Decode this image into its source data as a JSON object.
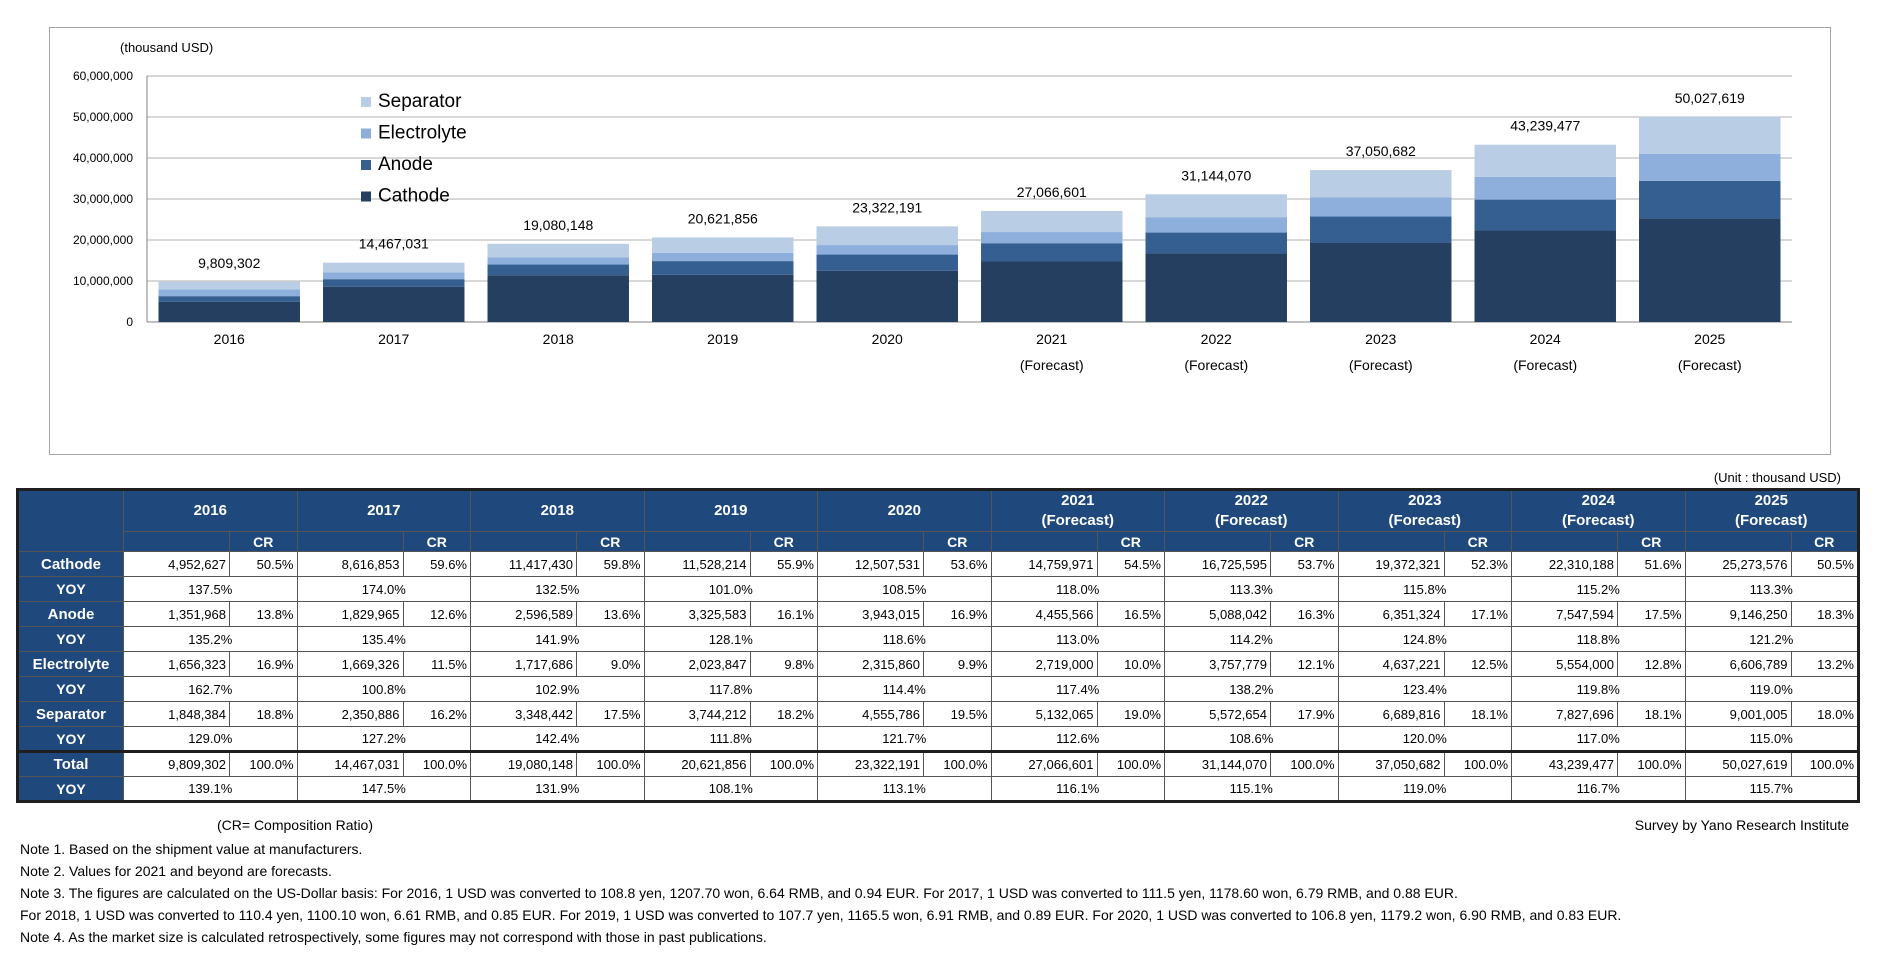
{
  "chart_data": {
    "type": "bar",
    "stacked": true,
    "y_unit_label": "(thousand USD)",
    "ylim": [
      0,
      60000000
    ],
    "yticks": [
      "0",
      "10,000,000",
      "20,000,000",
      "30,000,000",
      "40,000,000",
      "50,000,000",
      "60,000,000"
    ],
    "grid": true,
    "legend_position": "top-left",
    "categories": [
      {
        "year": "2016",
        "sub": ""
      },
      {
        "year": "2017",
        "sub": ""
      },
      {
        "year": "2018",
        "sub": ""
      },
      {
        "year": "2019",
        "sub": ""
      },
      {
        "year": "2020",
        "sub": ""
      },
      {
        "year": "2021",
        "sub": "(Forecast)"
      },
      {
        "year": "2022",
        "sub": "(Forecast)"
      },
      {
        "year": "2023",
        "sub": "(Forecast)"
      },
      {
        "year": "2024",
        "sub": "(Forecast)"
      },
      {
        "year": "2025",
        "sub": "(Forecast)"
      }
    ],
    "series": [
      {
        "name": "Cathode",
        "color": "#243f60",
        "values": [
          4952627,
          8616853,
          11417430,
          11528214,
          12507531,
          14759971,
          16725595,
          19372321,
          22310188,
          25273576
        ]
      },
      {
        "name": "Anode",
        "color": "#355f91",
        "values": [
          1351968,
          1829965,
          2596589,
          3325583,
          3943015,
          4455566,
          5088042,
          6351324,
          7547594,
          9146250
        ]
      },
      {
        "name": "Electrolyte",
        "color": "#8eaedb",
        "values": [
          1656323,
          1669326,
          1717686,
          2023847,
          2315860,
          2719000,
          3757779,
          4637221,
          5554000,
          6606789
        ]
      },
      {
        "name": "Separator",
        "color": "#b9cde5",
        "values": [
          1848384,
          2350886,
          3348442,
          3744212,
          4555786,
          5132065,
          5572654,
          6689816,
          7827696,
          9001005
        ]
      }
    ],
    "totals": [
      9809302,
      14467031,
      19080148,
      20621856,
      23322191,
      27066601,
      31144070,
      37050682,
      43239477,
      50027619
    ],
    "total_labels": [
      "9,809,302",
      "14,467,031",
      "19,080,148",
      "20,621,856",
      "23,322,191",
      "27,066,601",
      "31,144,070",
      "37,050,682",
      "43,239,477",
      "50,027,619"
    ],
    "legend_order": [
      "Separator",
      "Electrolyte",
      "Anode",
      "Cathode"
    ]
  },
  "table": {
    "unit": "(Unit : thousand USD)",
    "cr_label": "CR",
    "years": [
      {
        "year": "2016",
        "sub": ""
      },
      {
        "year": "2017",
        "sub": ""
      },
      {
        "year": "2018",
        "sub": ""
      },
      {
        "year": "2019",
        "sub": ""
      },
      {
        "year": "2020",
        "sub": ""
      },
      {
        "year": "2021",
        "sub": "(Forecast)"
      },
      {
        "year": "2022",
        "sub": "(Forecast)"
      },
      {
        "year": "2023",
        "sub": "(Forecast)"
      },
      {
        "year": "2024",
        "sub": "(Forecast)"
      },
      {
        "year": "2025",
        "sub": "(Forecast)"
      }
    ],
    "rows": [
      {
        "label": "Cathode",
        "yoy_label": "YOY",
        "values": [
          "4,952,627",
          "8,616,853",
          "11,417,430",
          "11,528,214",
          "12,507,531",
          "14,759,971",
          "16,725,595",
          "19,372,321",
          "22,310,188",
          "25,273,576"
        ],
        "cr": [
          "50.5%",
          "59.6%",
          "59.8%",
          "55.9%",
          "53.6%",
          "54.5%",
          "53.7%",
          "52.3%",
          "51.6%",
          "50.5%"
        ],
        "yoy": [
          "137.5%",
          "174.0%",
          "132.5%",
          "101.0%",
          "108.5%",
          "118.0%",
          "113.3%",
          "115.8%",
          "115.2%",
          "113.3%"
        ]
      },
      {
        "label": "Anode",
        "yoy_label": "YOY",
        "values": [
          "1,351,968",
          "1,829,965",
          "2,596,589",
          "3,325,583",
          "3,943,015",
          "4,455,566",
          "5,088,042",
          "6,351,324",
          "7,547,594",
          "9,146,250"
        ],
        "cr": [
          "13.8%",
          "12.6%",
          "13.6%",
          "16.1%",
          "16.9%",
          "16.5%",
          "16.3%",
          "17.1%",
          "17.5%",
          "18.3%"
        ],
        "yoy": [
          "135.2%",
          "135.4%",
          "141.9%",
          "128.1%",
          "118.6%",
          "113.0%",
          "114.2%",
          "124.8%",
          "118.8%",
          "121.2%"
        ]
      },
      {
        "label": "Electrolyte",
        "yoy_label": "YOY",
        "values": [
          "1,656,323",
          "1,669,326",
          "1,717,686",
          "2,023,847",
          "2,315,860",
          "2,719,000",
          "3,757,779",
          "4,637,221",
          "5,554,000",
          "6,606,789"
        ],
        "cr": [
          "16.9%",
          "11.5%",
          "9.0%",
          "9.8%",
          "9.9%",
          "10.0%",
          "12.1%",
          "12.5%",
          "12.8%",
          "13.2%"
        ],
        "yoy": [
          "162.7%",
          "100.8%",
          "102.9%",
          "117.8%",
          "114.4%",
          "117.4%",
          "138.2%",
          "123.4%",
          "119.8%",
          "119.0%"
        ]
      },
      {
        "label": "Separator",
        "yoy_label": "YOY",
        "values": [
          "1,848,384",
          "2,350,886",
          "3,348,442",
          "3,744,212",
          "4,555,786",
          "5,132,065",
          "5,572,654",
          "6,689,816",
          "7,827,696",
          "9,001,005"
        ],
        "cr": [
          "18.8%",
          "16.2%",
          "17.5%",
          "18.2%",
          "19.5%",
          "19.0%",
          "17.9%",
          "18.1%",
          "18.1%",
          "18.0%"
        ],
        "yoy": [
          "129.0%",
          "127.2%",
          "142.4%",
          "111.8%",
          "121.7%",
          "112.6%",
          "108.6%",
          "120.0%",
          "117.0%",
          "115.0%"
        ]
      },
      {
        "label": "Total",
        "yoy_label": "YOY",
        "values": [
          "9,809,302",
          "14,467,031",
          "19,080,148",
          "20,621,856",
          "23,322,191",
          "27,066,601",
          "31,144,070",
          "37,050,682",
          "43,239,477",
          "50,027,619"
        ],
        "cr": [
          "100.0%",
          "100.0%",
          "100.0%",
          "100.0%",
          "100.0%",
          "100.0%",
          "100.0%",
          "100.0%",
          "100.0%",
          "100.0%"
        ],
        "yoy": [
          "139.1%",
          "147.5%",
          "131.9%",
          "108.1%",
          "113.1%",
          "116.1%",
          "115.1%",
          "119.0%",
          "116.7%",
          "115.7%"
        ]
      }
    ]
  },
  "footer": {
    "cr_note": "(CR= Composition Ratio)",
    "survey": "Survey by Yano Research Institute",
    "notes": [
      "Note 1. Based on the shipment value at manufacturers.",
      "Note 2. Values for 2021 and beyond are forecasts.",
      "Note 3. The figures are calculated on the US-Dollar basis: For 2016, 1 USD was converted to 108.8 yen, 1207.70 won, 6.64 RMB, and 0.94 EUR. For 2017, 1 USD was converted to 111.5 yen, 1178.60 won, 6.79 RMB, and 0.88 EUR.",
      "For 2018, 1 USD was converted to 110.4 yen, 1100.10 won, 6.61 RMB, and 0.85 EUR. For 2019, 1 USD was converted to 107.7 yen, 1165.5 won, 6.91 RMB, and 0.89 EUR. For 2020, 1 USD was converted to 106.8 yen, 1179.2 won, 6.90 RMB, and 0.83 EUR.",
      "Note 4. As the market size is calculated retrospectively, some figures may not correspond with those in past publications."
    ]
  }
}
